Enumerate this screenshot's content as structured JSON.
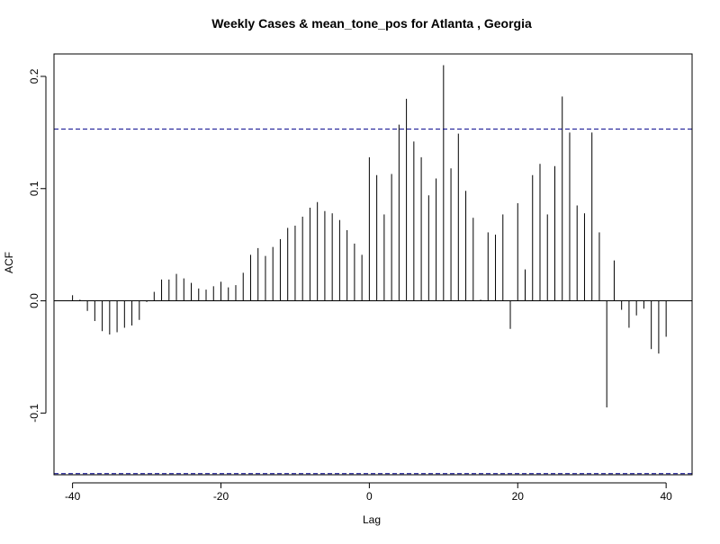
{
  "chart_data": {
    "type": "bar",
    "title": "Weekly Cases & mean_tone_pos for Atlanta , Georgia",
    "xlabel": "Lag",
    "ylabel": "ACF",
    "xlim": [
      -42.5,
      43.5
    ],
    "ylim": [
      -0.155,
      0.22
    ],
    "x_ticks": [
      -40,
      -20,
      0,
      20,
      40
    ],
    "y_ticks": [
      -0.1,
      0.0,
      0.1,
      0.2
    ],
    "x_tick_labels": [
      "-40",
      "-20",
      "0",
      "20",
      "40"
    ],
    "y_tick_labels": [
      "-0.1",
      "0.0",
      "0.1",
      "0.2"
    ],
    "confidence_band": [
      0.153,
      -0.154
    ],
    "colors": {
      "bars": "#000000",
      "confidence": "#00008b",
      "zero_line": "#000000"
    },
    "lags": [
      -40,
      -39,
      -38,
      -37,
      -36,
      -35,
      -34,
      -33,
      -32,
      -31,
      -30,
      -29,
      -28,
      -27,
      -26,
      -25,
      -24,
      -23,
      -22,
      -21,
      -20,
      -19,
      -18,
      -17,
      -16,
      -15,
      -14,
      -13,
      -12,
      -11,
      -10,
      -9,
      -8,
      -7,
      -6,
      -5,
      -4,
      -3,
      -2,
      -1,
      0,
      1,
      2,
      3,
      4,
      5,
      6,
      7,
      8,
      9,
      10,
      11,
      12,
      13,
      14,
      15,
      16,
      17,
      18,
      19,
      20,
      21,
      22,
      23,
      24,
      25,
      26,
      27,
      28,
      29,
      30,
      31,
      32,
      33,
      34,
      35,
      36,
      37,
      38,
      39,
      40
    ],
    "acf": [
      0.005,
      0.001,
      -0.009,
      -0.018,
      -0.027,
      -0.03,
      -0.028,
      -0.024,
      -0.022,
      -0.017,
      -0.001,
      0.008,
      0.019,
      0.019,
      0.024,
      0.02,
      0.016,
      0.011,
      0.01,
      0.013,
      0.017,
      0.012,
      0.014,
      0.025,
      0.041,
      0.047,
      0.04,
      0.048,
      0.055,
      0.065,
      0.067,
      0.075,
      0.083,
      0.088,
      0.08,
      0.078,
      0.072,
      0.063,
      0.051,
      0.041,
      0.128,
      0.112,
      0.077,
      0.113,
      0.157,
      0.18,
      0.142,
      0.128,
      0.094,
      0.109,
      0.21,
      0.118,
      0.149,
      0.098,
      0.074,
      0.001,
      0.061,
      0.059,
      0.077,
      -0.025,
      0.087,
      0.028,
      0.112,
      0.122,
      0.077,
      0.12,
      0.182,
      0.15,
      0.085,
      0.078,
      0.15,
      0.061,
      -0.095,
      0.036,
      -0.008,
      -0.024,
      -0.013,
      -0.007,
      -0.043,
      -0.047,
      -0.032
    ]
  }
}
